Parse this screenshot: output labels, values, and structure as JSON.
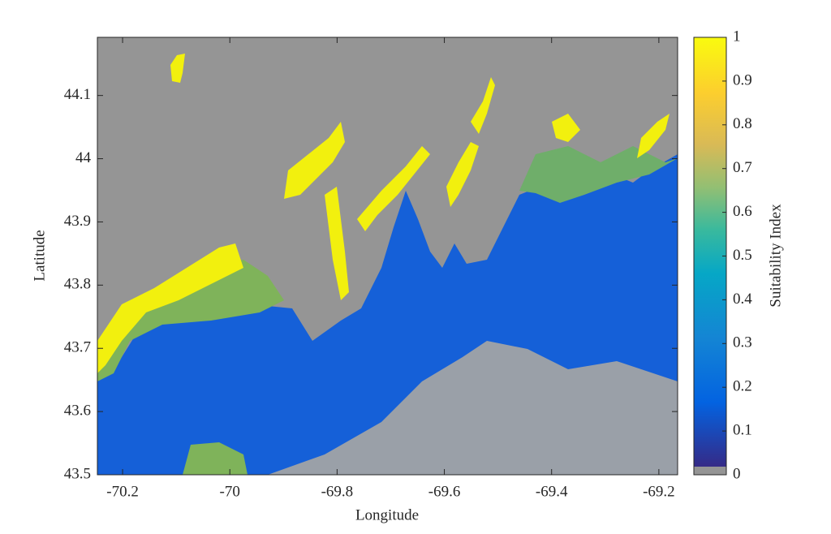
{
  "chart_data": {
    "type": "heatmap",
    "xlabel": "Longitude",
    "ylabel": "Latitude",
    "xlim": [
      -70.247,
      -69.165
    ],
    "ylim": [
      43.5,
      44.192
    ],
    "xticks": [
      -70.2,
      -70,
      -69.8,
      -69.6,
      -69.4,
      -69.2
    ],
    "yticks": [
      43.5,
      43.6,
      43.7,
      43.8,
      43.9,
      44,
      44.1
    ],
    "colorbar": {
      "label": "Suitability Index",
      "lim": [
        0,
        1
      ],
      "ticks": [
        0,
        0.1,
        0.2,
        0.3,
        0.4,
        0.5,
        0.6,
        0.7,
        0.8,
        0.9,
        1
      ]
    }
  }
}
